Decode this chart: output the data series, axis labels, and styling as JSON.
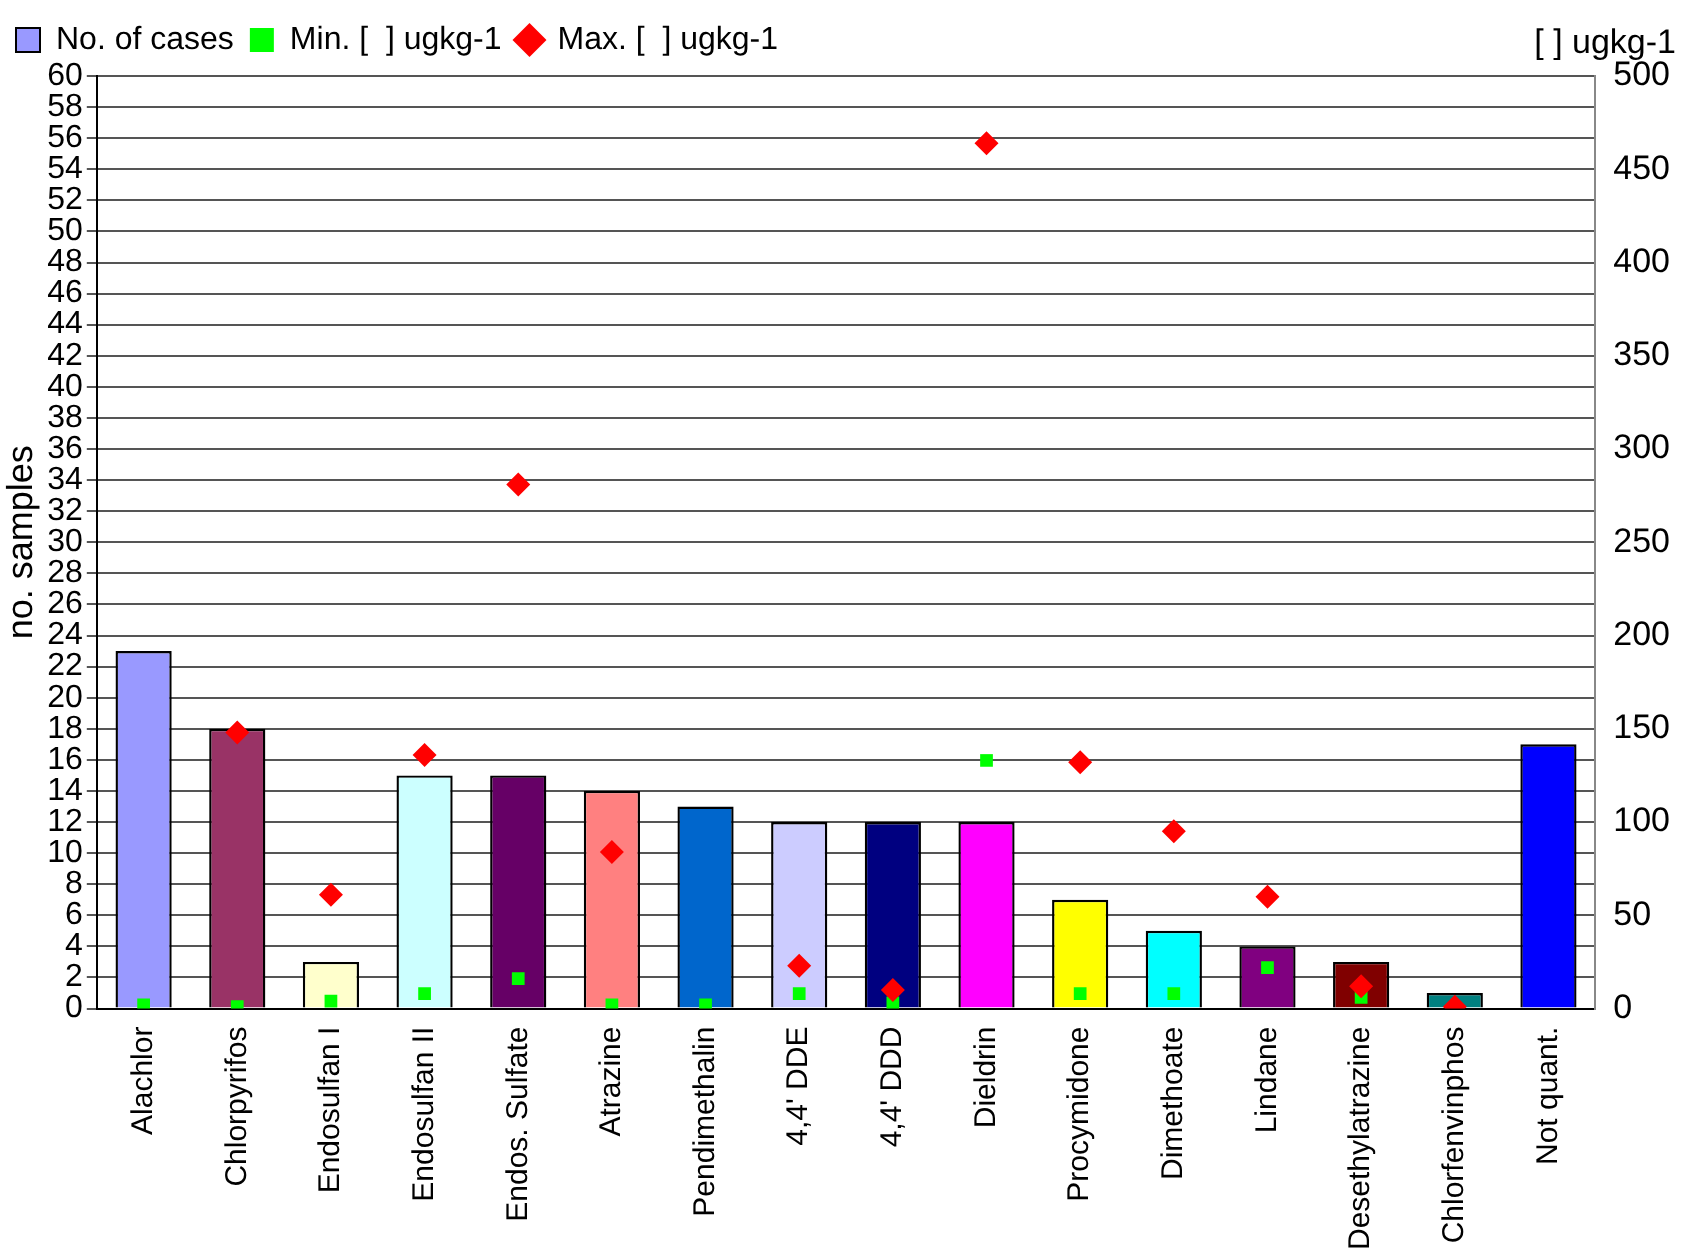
{
  "chart_data": {
    "type": "bar",
    "ylabel": "no. samples",
    "y2label": "[ ] ugkg-1",
    "categories": [
      "Alachlor",
      "Chlorpyrifos",
      "Endosulfan I",
      "Endosulfan II",
      "Endos. Sulfate",
      "Atrazine",
      "Pendimethalin",
      "4,4' DDE",
      "4,4' DDD",
      "Dieldrin",
      "Procymidone",
      "Dimethoate",
      "Lindane",
      "Desethylatrazine",
      "Chlorfenvinphos",
      "Not quant."
    ],
    "series": [
      {
        "name": "No. of cases",
        "type": "bar",
        "color": "#9999ff",
        "colors": [
          "#9999ff",
          "#993366",
          "#ffffcc",
          "#ccffff",
          "#660066",
          "#ff8080",
          "#0066cc",
          "#ccccff",
          "#000080",
          "#ff00ff",
          "#ffff00",
          "#00ffff",
          "#800080",
          "#800000",
          "#008080",
          "#0000ff"
        ],
        "values": [
          23,
          18,
          3,
          15,
          15,
          14,
          13,
          12,
          12,
          12,
          7,
          5,
          4,
          3,
          1,
          17
        ]
      },
      {
        "name": "Min. [  ] ugkg-1",
        "type": "scatter",
        "axis": "y2",
        "marker": "square",
        "color": "#00ff00",
        "values": [
          2,
          1,
          4,
          8,
          16,
          2,
          2,
          8,
          3,
          133,
          8,
          8,
          22,
          6,
          null,
          null
        ]
      },
      {
        "name": "Max. [  ] ugkg-1",
        "type": "scatter",
        "axis": "y2",
        "marker": "diamond",
        "color": "#ff0000",
        "values": [
          null,
          148,
          61,
          136,
          281,
          84,
          null,
          23,
          10,
          464,
          132,
          95,
          60,
          12,
          1,
          null
        ]
      }
    ],
    "ylim": [
      0,
      60
    ],
    "yticks": [
      0,
      2,
      4,
      6,
      8,
      10,
      12,
      14,
      16,
      18,
      20,
      22,
      24,
      26,
      28,
      30,
      32,
      34,
      36,
      38,
      40,
      42,
      44,
      46,
      48,
      50,
      52,
      54,
      56,
      58,
      60
    ],
    "y2lim": [
      0,
      500
    ],
    "y2ticks": [
      0,
      50,
      100,
      150,
      200,
      250,
      300,
      350,
      400,
      450,
      500
    ],
    "grid": "y",
    "legend": "top"
  }
}
